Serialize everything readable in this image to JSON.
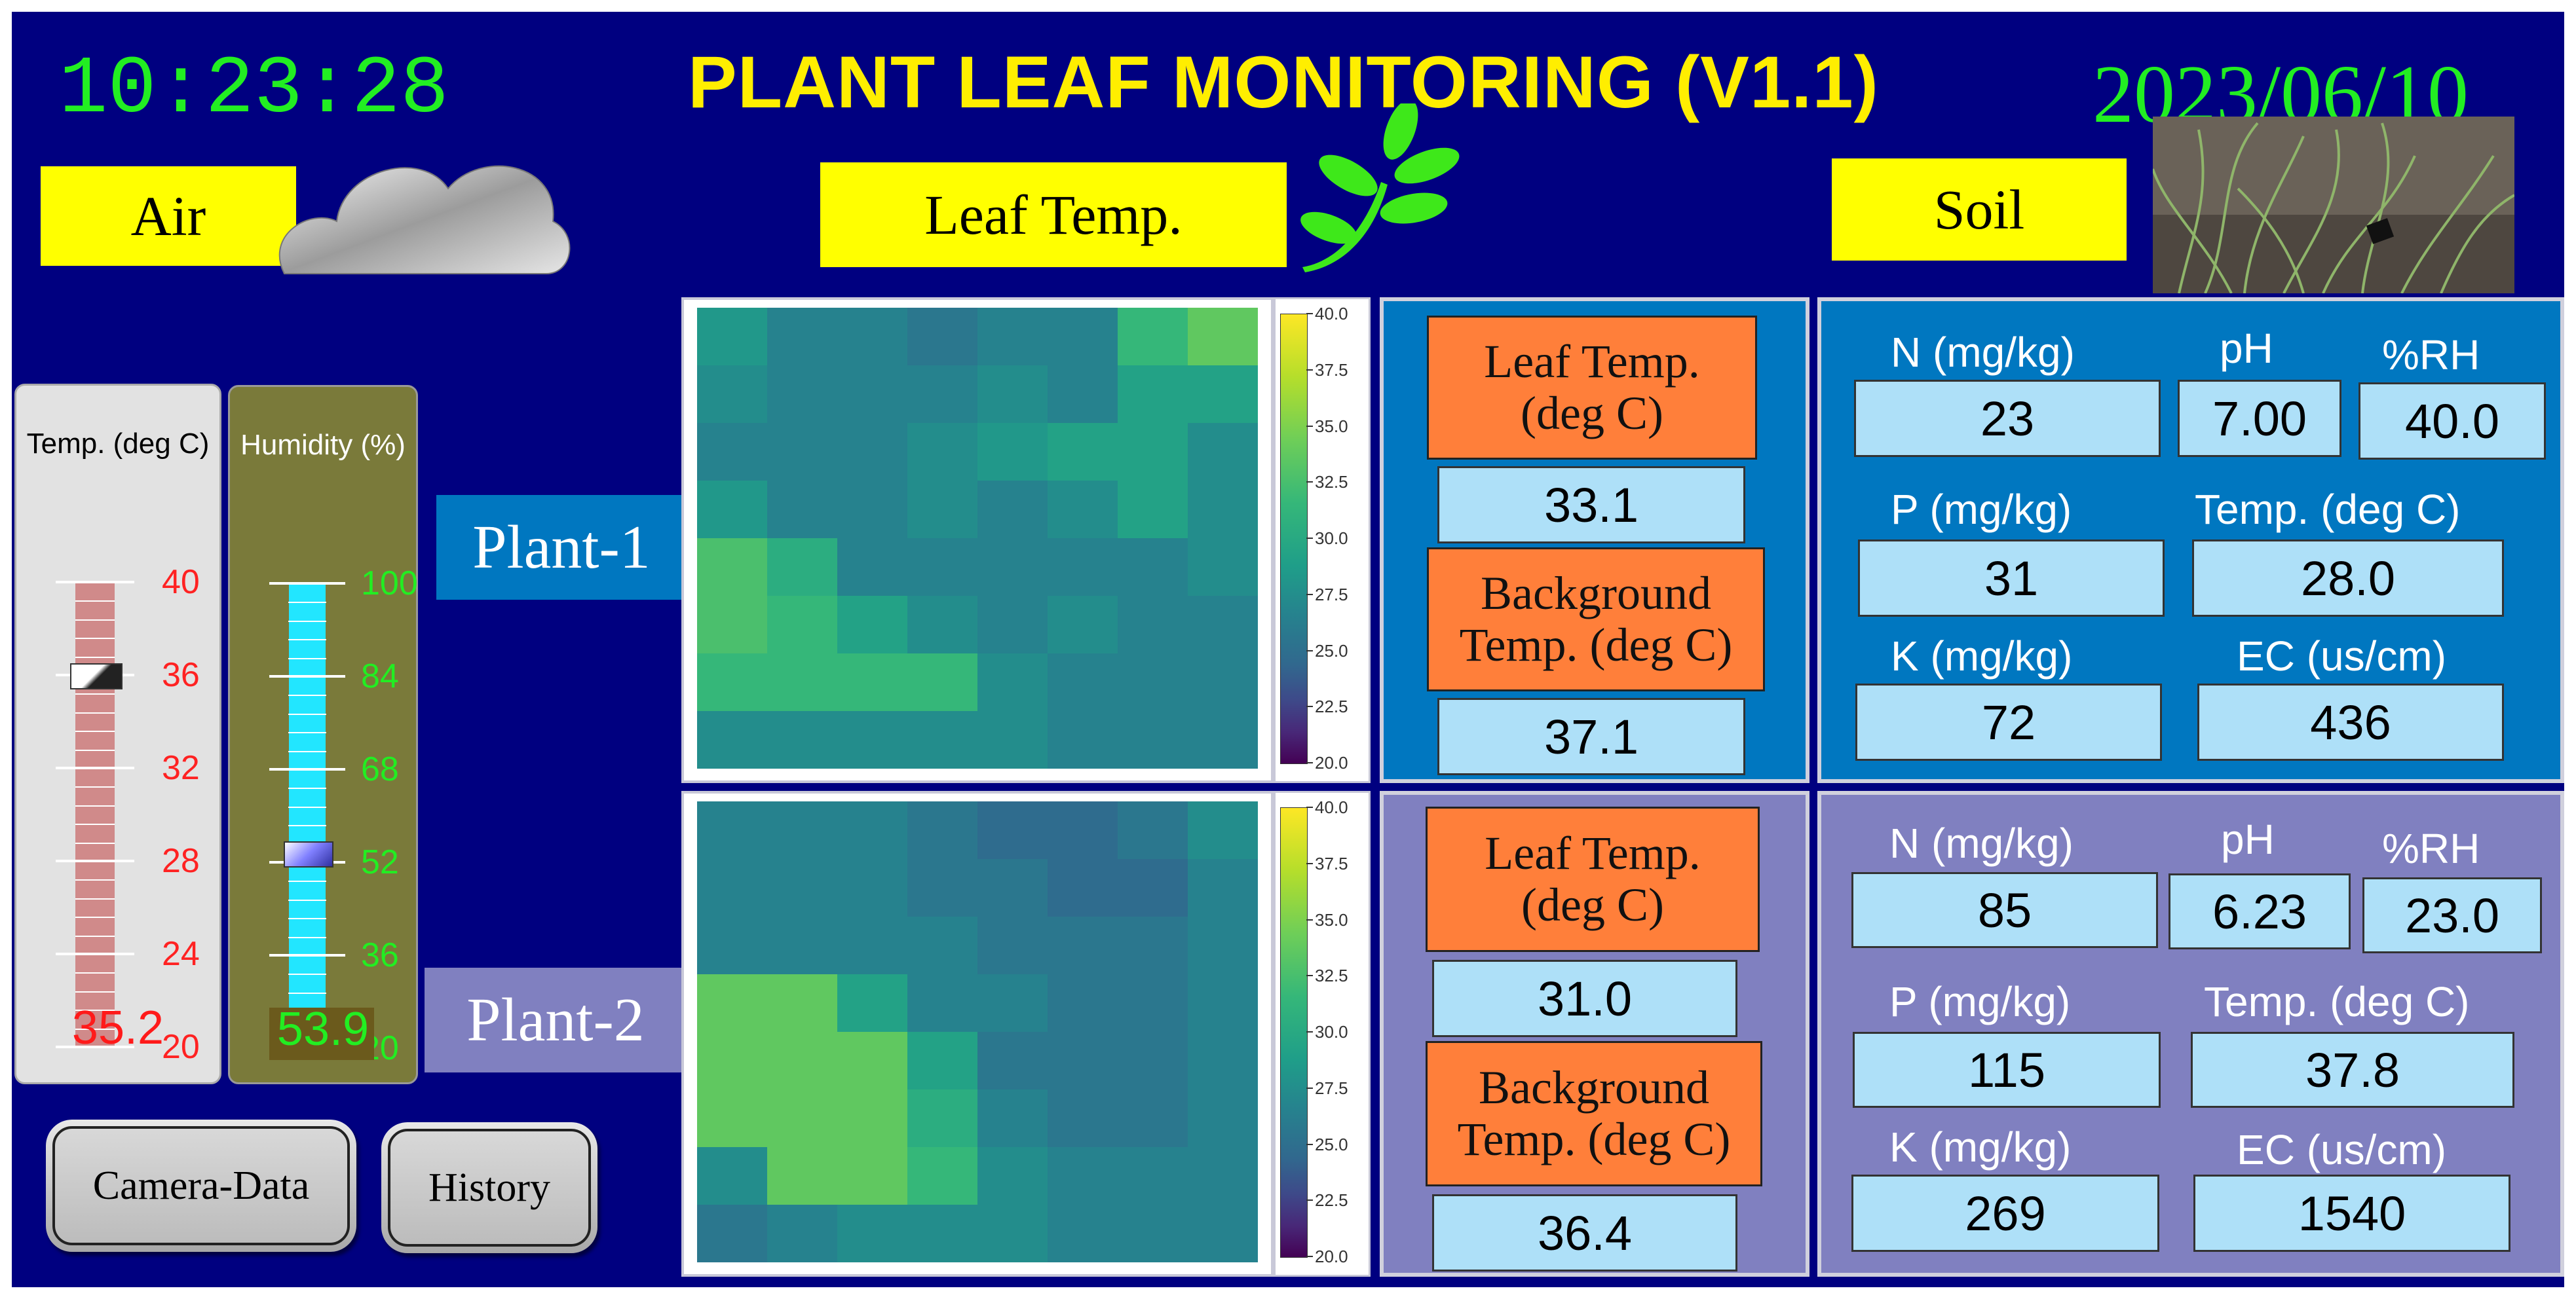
{
  "header": {
    "time": "10:23:28",
    "title": "PLANT LEAF MONITORING (V1.1)",
    "date": "2023/06/10"
  },
  "sections": {
    "air": "Air",
    "leaf_temp": "Leaf Temp.",
    "soil": "Soil"
  },
  "icons": {
    "cloud": "cloud-icon",
    "leaf": "leaf-sprout-icon",
    "soil_photo": "soil-grass-photo"
  },
  "air_temp": {
    "label": "Temp. (deg C)",
    "ticks": [
      "40",
      "36",
      "32",
      "28",
      "24",
      "20"
    ],
    "value": "35.2",
    "level_fraction": 0.8
  },
  "humidity": {
    "label": "Humidity (%)",
    "ticks": [
      "100",
      "84",
      "68",
      "52",
      "36",
      "20"
    ],
    "value": "53.9",
    "level_fraction": 0.42
  },
  "plants": [
    {
      "label": "Plant-1",
      "leaf_label": "Leaf Temp.\n(deg C)",
      "leaf_temp": "33.1",
      "bg_label": "Background\nTemp. (deg C)",
      "bg_temp": "37.1",
      "soil": {
        "n_label": "N (mg/kg)",
        "n": "23",
        "ph_label": "pH",
        "ph": "7.00",
        "rh_label": "%RH",
        "rh": "40.0",
        "p_label": "P (mg/kg)",
        "p": "31",
        "temp_label": "Temp. (deg C)",
        "temp": "28.0",
        "k_label": "K (mg/kg)",
        "k": "72",
        "ec_label": "EC (us/cm)",
        "ec": "436"
      }
    },
    {
      "label": "Plant-2",
      "leaf_label": "Leaf Temp.\n(deg C)",
      "leaf_temp": "31.0",
      "bg_label": "Background\nTemp. (deg C)",
      "bg_temp": "36.4",
      "soil": {
        "n_label": "N (mg/kg)",
        "n": "85",
        "ph_label": "pH",
        "ph": "6.23",
        "rh_label": "%RH",
        "rh": "23.0",
        "p_label": "P (mg/kg)",
        "p": "115",
        "temp_label": "Temp. (deg C)",
        "temp": "37.8",
        "k_label": "K (mg/kg)",
        "k": "269",
        "ec_label": "EC (us/cm)",
        "ec": "1540"
      }
    }
  ],
  "colorbar": {
    "ticks": [
      "40.0",
      "37.5",
      "35.0",
      "32.5",
      "30.0",
      "27.5",
      "25.0",
      "22.5",
      "20.0"
    ]
  },
  "heatmaps": [
    [
      [
        32,
        30,
        30,
        29,
        30,
        30,
        35,
        37
      ],
      [
        31,
        30,
        30,
        30,
        31,
        30,
        33,
        33
      ],
      [
        30,
        30,
        30,
        31,
        32,
        33,
        33,
        31
      ],
      [
        32,
        30,
        30,
        31,
        30,
        31,
        33,
        31
      ],
      [
        36,
        34,
        30,
        30,
        30,
        30,
        30,
        31
      ],
      [
        36,
        35,
        33,
        31,
        30,
        31,
        30,
        30
      ],
      [
        35,
        35,
        35,
        35,
        31,
        30,
        30,
        30
      ],
      [
        31,
        31,
        31,
        31,
        31,
        30,
        30,
        30
      ]
    ],
    [
      [
        30,
        30,
        30,
        29,
        28,
        28,
        29,
        31
      ],
      [
        30,
        30,
        30,
        29,
        29,
        28,
        28,
        30
      ],
      [
        30,
        30,
        30,
        30,
        29,
        29,
        29,
        30
      ],
      [
        37,
        37,
        33,
        30,
        30,
        29,
        29,
        30
      ],
      [
        37,
        37,
        37,
        33,
        29,
        29,
        29,
        30
      ],
      [
        37,
        37,
        37,
        34,
        30,
        29,
        29,
        30
      ],
      [
        31,
        37,
        37,
        35,
        31,
        30,
        30,
        30
      ],
      [
        29,
        30,
        31,
        31,
        31,
        30,
        30,
        30
      ]
    ]
  ],
  "buttons": {
    "camera": "Camera-Data",
    "history": "History"
  },
  "colors": {
    "background": "#000080",
    "clock": "#22ee22",
    "title": "#ffee00",
    "plant1_panel": "#0077c0",
    "plant2_panel": "#8080c0",
    "label_orange": "#ff7f3a",
    "value_box": "#aee0f8"
  }
}
